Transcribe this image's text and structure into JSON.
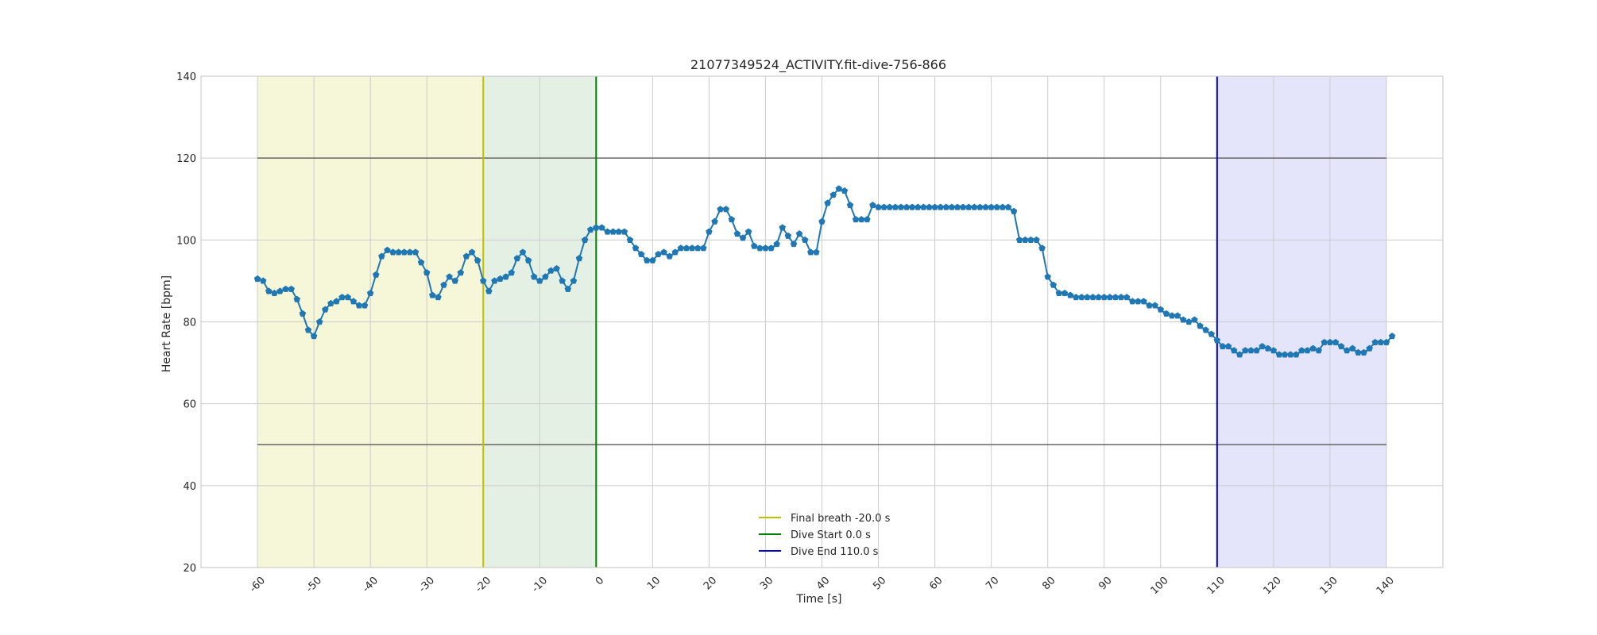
{
  "chart_data": {
    "type": "line",
    "title": "21077349524_ACTIVITY.fit-dive-756-866",
    "xlabel": "Time [s]",
    "ylabel": "Heart Rate [bpm]",
    "xlim": [
      -70,
      150
    ],
    "ylim": [
      20,
      140
    ],
    "xticks": [
      -60,
      -50,
      -40,
      -30,
      -20,
      -10,
      0,
      10,
      20,
      30,
      40,
      50,
      60,
      70,
      80,
      90,
      100,
      110,
      120,
      130,
      140
    ],
    "yticks": [
      20,
      40,
      60,
      80,
      100,
      120,
      140
    ],
    "grid": true,
    "legend_position": "lower-center",
    "series": [
      {
        "color": "#1f77b4",
        "marker": "pentagon",
        "points": [
          [
            -60,
            90.5
          ],
          [
            -59,
            90
          ],
          [
            -58,
            87.5
          ],
          [
            -57,
            87
          ],
          [
            -56,
            87.5
          ],
          [
            -55,
            88
          ],
          [
            -54,
            88
          ],
          [
            -53,
            85.5
          ],
          [
            -52,
            82
          ],
          [
            -51,
            78
          ],
          [
            -50,
            76.5
          ],
          [
            -49,
            80
          ],
          [
            -48,
            83
          ],
          [
            -47,
            84.5
          ],
          [
            -46,
            85
          ],
          [
            -45,
            86
          ],
          [
            -44,
            86
          ],
          [
            -43,
            85
          ],
          [
            -42,
            84
          ],
          [
            -41,
            84
          ],
          [
            -40,
            87
          ],
          [
            -39,
            91.5
          ],
          [
            -38,
            96
          ],
          [
            -37,
            97.5
          ],
          [
            -36,
            97
          ],
          [
            -35,
            97
          ],
          [
            -34,
            97
          ],
          [
            -33,
            97
          ],
          [
            -32,
            97
          ],
          [
            -31,
            94.5
          ],
          [
            -30,
            92
          ],
          [
            -29,
            86.5
          ],
          [
            -28,
            86
          ],
          [
            -27,
            89
          ],
          [
            -26,
            91
          ],
          [
            -25,
            90
          ],
          [
            -24,
            92
          ],
          [
            -23,
            96
          ],
          [
            -22,
            97
          ],
          [
            -21,
            95
          ],
          [
            -20,
            90
          ],
          [
            -19,
            87.5
          ],
          [
            -18,
            90
          ],
          [
            -17,
            90.5
          ],
          [
            -16,
            91
          ],
          [
            -15,
            92
          ],
          [
            -14,
            95.5
          ],
          [
            -13,
            97
          ],
          [
            -12,
            95
          ],
          [
            -11,
            91
          ],
          [
            -10,
            90
          ],
          [
            -9,
            91
          ],
          [
            -8,
            92.5
          ],
          [
            -7,
            93
          ],
          [
            -6,
            90
          ],
          [
            -5,
            88
          ],
          [
            -4,
            90
          ],
          [
            -3,
            95.5
          ],
          [
            -2,
            100
          ],
          [
            -1,
            102.5
          ],
          [
            0,
            103
          ],
          [
            1,
            103
          ],
          [
            2,
            102
          ],
          [
            3,
            102
          ],
          [
            4,
            102
          ],
          [
            5,
            102
          ],
          [
            6,
            100
          ],
          [
            7,
            98
          ],
          [
            8,
            96.5
          ],
          [
            9,
            95
          ],
          [
            10,
            95
          ],
          [
            11,
            96.5
          ],
          [
            12,
            97
          ],
          [
            13,
            96
          ],
          [
            14,
            97
          ],
          [
            15,
            98
          ],
          [
            16,
            98
          ],
          [
            17,
            98
          ],
          [
            18,
            98
          ],
          [
            19,
            98
          ],
          [
            20,
            102
          ],
          [
            21,
            104.5
          ],
          [
            22,
            107.5
          ],
          [
            23,
            107.5
          ],
          [
            24,
            105
          ],
          [
            25,
            101.5
          ],
          [
            26,
            100.5
          ],
          [
            27,
            102
          ],
          [
            28,
            98.5
          ],
          [
            29,
            98
          ],
          [
            30,
            98
          ],
          [
            31,
            98
          ],
          [
            32,
            99
          ],
          [
            33,
            103
          ],
          [
            34,
            101
          ],
          [
            35,
            99
          ],
          [
            36,
            101.5
          ],
          [
            37,
            100
          ],
          [
            38,
            97
          ],
          [
            39,
            97
          ],
          [
            40,
            104.5
          ],
          [
            41,
            109
          ],
          [
            42,
            111
          ],
          [
            43,
            112.5
          ],
          [
            44,
            112
          ],
          [
            45,
            108.5
          ],
          [
            46,
            105
          ],
          [
            47,
            105
          ],
          [
            48,
            105
          ],
          [
            49,
            108.5
          ],
          [
            50,
            108
          ],
          [
            51,
            108
          ],
          [
            52,
            108
          ],
          [
            53,
            108
          ],
          [
            54,
            108
          ],
          [
            55,
            108
          ],
          [
            56,
            108
          ],
          [
            57,
            108
          ],
          [
            58,
            108
          ],
          [
            59,
            108
          ],
          [
            60,
            108
          ],
          [
            61,
            108
          ],
          [
            62,
            108
          ],
          [
            63,
            108
          ],
          [
            64,
            108
          ],
          [
            65,
            108
          ],
          [
            66,
            108
          ],
          [
            67,
            108
          ],
          [
            68,
            108
          ],
          [
            69,
            108
          ],
          [
            70,
            108
          ],
          [
            71,
            108
          ],
          [
            72,
            108
          ],
          [
            73,
            108
          ],
          [
            74,
            107
          ],
          [
            75,
            100
          ],
          [
            76,
            100
          ],
          [
            77,
            100
          ],
          [
            78,
            100
          ],
          [
            79,
            98
          ],
          [
            80,
            91
          ],
          [
            81,
            89
          ],
          [
            82,
            87
          ],
          [
            83,
            87
          ],
          [
            84,
            86.5
          ],
          [
            85,
            86
          ],
          [
            86,
            86
          ],
          [
            87,
            86
          ],
          [
            88,
            86
          ],
          [
            89,
            86
          ],
          [
            90,
            86
          ],
          [
            91,
            86
          ],
          [
            92,
            86
          ],
          [
            93,
            86
          ],
          [
            94,
            86
          ],
          [
            95,
            85
          ],
          [
            96,
            85
          ],
          [
            97,
            85
          ],
          [
            98,
            84
          ],
          [
            99,
            84
          ],
          [
            100,
            83
          ],
          [
            101,
            82
          ],
          [
            102,
            81.5
          ],
          [
            103,
            81.5
          ],
          [
            104,
            80.5
          ],
          [
            105,
            80
          ],
          [
            106,
            80.5
          ],
          [
            107,
            79
          ],
          [
            108,
            78
          ],
          [
            109,
            77
          ],
          [
            110,
            75.5
          ],
          [
            111,
            74
          ],
          [
            112,
            74
          ],
          [
            113,
            73
          ],
          [
            114,
            72
          ],
          [
            115,
            73
          ],
          [
            116,
            73
          ],
          [
            117,
            73
          ],
          [
            118,
            74
          ],
          [
            119,
            73.5
          ],
          [
            120,
            73
          ],
          [
            121,
            72
          ],
          [
            122,
            72
          ],
          [
            123,
            72
          ],
          [
            124,
            72
          ],
          [
            125,
            73
          ],
          [
            126,
            73
          ],
          [
            127,
            73.5
          ],
          [
            128,
            73
          ],
          [
            129,
            75
          ],
          [
            130,
            75
          ],
          [
            131,
            75
          ],
          [
            132,
            74
          ],
          [
            133,
            73
          ],
          [
            134,
            73.5
          ],
          [
            135,
            72.5
          ],
          [
            136,
            72.5
          ],
          [
            137,
            73.5
          ],
          [
            138,
            75
          ],
          [
            139,
            75
          ],
          [
            140,
            75
          ],
          [
            141,
            76.5
          ]
        ]
      }
    ],
    "reference_lines": {
      "horizontal": [
        {
          "y": 120,
          "x_from": -60,
          "x_to": 140,
          "color": "#666666"
        },
        {
          "y": 50,
          "x_from": -60,
          "x_to": 140,
          "color": "#666666"
        }
      ],
      "vertical": [
        {
          "x": -20,
          "color": "#bfbf00",
          "label": "Final breath -20.0 s"
        },
        {
          "x": 0,
          "color": "#008000",
          "label": "Dive Start 0.0 s"
        },
        {
          "x": 110,
          "color": "#0000cc",
          "label": "Dive End 110.0 s"
        }
      ]
    },
    "shaded_regions": [
      {
        "x_from": -60,
        "x_to": -20,
        "color": "#f2f2c8"
      },
      {
        "x_from": -20,
        "x_to": 0,
        "color": "#d8ead8"
      },
      {
        "x_from": 110,
        "x_to": 140,
        "color": "#d8d8fa"
      }
    ]
  }
}
